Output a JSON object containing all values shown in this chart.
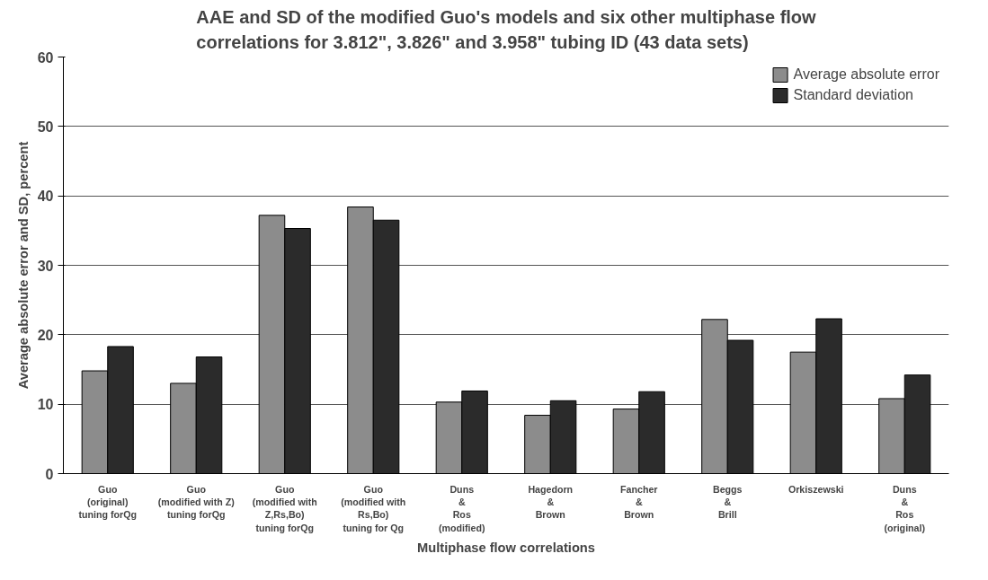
{
  "chart_data": {
    "type": "bar",
    "title": "AAE and SD of the modified Guo's models and six other multiphase flow\ncorrelations for 3.812\", 3.826\" and 3.958\" tubing ID (43 data sets)",
    "xlabel": "Multiphase flow correlations",
    "ylabel": "Average absolute error and SD, percent",
    "categories": [
      "Guo\n(original)\ntuning forQg",
      "Guo\n(modified with Z)\ntuning forQg",
      "Guo\n(modified with\nZ,Rs,Bo)\ntuning forQg",
      "Guo\n(modified with\nRs,Bo)\ntuning for Qg",
      "Duns\n&\nRos\n(modified)",
      "Hagedorn\n&\nBrown",
      "Fancher\n&\nBrown",
      "Beggs\n&\nBrill",
      "Orkiszewski",
      "Duns\n&\nRos\n(original)"
    ],
    "series": [
      {
        "name": "Average absolute error",
        "color": "#8c8c8c",
        "values": [
          14.8,
          13.0,
          37.2,
          38.4,
          10.3,
          8.4,
          9.3,
          22.2,
          17.5,
          10.8
        ]
      },
      {
        "name": "Standard deviation",
        "color": "#2b2b2b",
        "values": [
          18.3,
          16.8,
          35.3,
          36.5,
          11.9,
          10.5,
          11.8,
          19.2,
          22.3,
          14.2
        ]
      }
    ],
    "ylim": [
      0,
      60
    ],
    "yticks": [
      0,
      10,
      20,
      30,
      40,
      50,
      60
    ],
    "grid": "y",
    "legend": "top right"
  }
}
